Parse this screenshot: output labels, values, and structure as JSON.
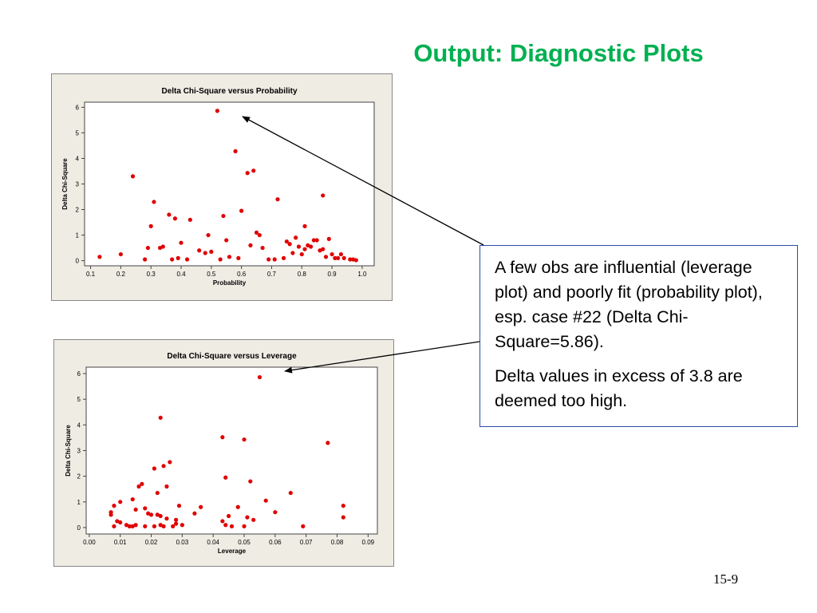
{
  "slide": {
    "title": "Output: Diagnostic Plots",
    "slide_number": "15-9"
  },
  "callout": {
    "paragraph1": "A few obs are influential (leverage plot) and poorly fit (probability plot), esp. case #22 (Delta Chi-Square=5.86).",
    "paragraph2": "Delta values in excess of 3.8 are deemed too high."
  },
  "colors": {
    "title": "#00b050",
    "marker": "#e00000",
    "frame_background": "#efece4",
    "callout_border": "#2a4da8"
  },
  "chart_data": [
    {
      "type": "scatter",
      "title": "Delta Chi-Square versus Probability",
      "xlabel": "Probability",
      "ylabel": "Delta Chi-Square",
      "xlim": [
        0.08,
        1.04
      ],
      "ylim": [
        -0.2,
        6.2
      ],
      "xticks": [
        0.1,
        0.2,
        0.3,
        0.4,
        0.5,
        0.6,
        0.7,
        0.8,
        0.9,
        1.0
      ],
      "xtick_labels": [
        "0.1",
        "0.2",
        "0.3",
        "0.4",
        "0.5",
        "0.6",
        "0.7",
        "0.8",
        "0.9",
        "1.0"
      ],
      "yticks": [
        0,
        1,
        2,
        3,
        4,
        5,
        6
      ],
      "ytick_labels": [
        "0",
        "1",
        "2",
        "3",
        "4",
        "5",
        "6"
      ],
      "grid": false,
      "legend": false,
      "marker_color": "#e00000",
      "points": [
        [
          0.13,
          0.15
        ],
        [
          0.2,
          0.25
        ],
        [
          0.24,
          3.3
        ],
        [
          0.28,
          0.05
        ],
        [
          0.29,
          0.5
        ],
        [
          0.3,
          1.35
        ],
        [
          0.31,
          2.3
        ],
        [
          0.33,
          0.5
        ],
        [
          0.34,
          0.55
        ],
        [
          0.36,
          1.8
        ],
        [
          0.37,
          0.05
        ],
        [
          0.38,
          1.65
        ],
        [
          0.39,
          0.1
        ],
        [
          0.4,
          0.7
        ],
        [
          0.42,
          0.05
        ],
        [
          0.43,
          1.6
        ],
        [
          0.46,
          0.4
        ],
        [
          0.48,
          0.3
        ],
        [
          0.49,
          1.0
        ],
        [
          0.5,
          0.35
        ],
        [
          0.52,
          5.86
        ],
        [
          0.53,
          0.05
        ],
        [
          0.54,
          1.75
        ],
        [
          0.55,
          0.8
        ],
        [
          0.56,
          0.15
        ],
        [
          0.58,
          4.28
        ],
        [
          0.59,
          0.1
        ],
        [
          0.6,
          1.95
        ],
        [
          0.62,
          3.43
        ],
        [
          0.63,
          0.6
        ],
        [
          0.64,
          3.52
        ],
        [
          0.65,
          1.1
        ],
        [
          0.66,
          1.0
        ],
        [
          0.67,
          0.5
        ],
        [
          0.69,
          0.05
        ],
        [
          0.71,
          0.05
        ],
        [
          0.72,
          2.4
        ],
        [
          0.74,
          0.1
        ],
        [
          0.75,
          0.75
        ],
        [
          0.76,
          0.65
        ],
        [
          0.77,
          0.3
        ],
        [
          0.78,
          0.9
        ],
        [
          0.79,
          0.55
        ],
        [
          0.8,
          0.25
        ],
        [
          0.81,
          1.35
        ],
        [
          0.81,
          0.45
        ],
        [
          0.82,
          0.6
        ],
        [
          0.83,
          0.55
        ],
        [
          0.84,
          0.8
        ],
        [
          0.85,
          0.8
        ],
        [
          0.86,
          0.4
        ],
        [
          0.87,
          0.45
        ],
        [
          0.87,
          2.55
        ],
        [
          0.88,
          0.15
        ],
        [
          0.89,
          0.85
        ],
        [
          0.9,
          0.25
        ],
        [
          0.91,
          0.1
        ],
        [
          0.92,
          0.1
        ],
        [
          0.93,
          0.25
        ],
        [
          0.94,
          0.1
        ],
        [
          0.96,
          0.05
        ],
        [
          0.97,
          0.05
        ],
        [
          0.98,
          0.02
        ]
      ]
    },
    {
      "type": "scatter",
      "title": "Delta Chi-Square versus Leverage",
      "xlabel": "Leverage",
      "ylabel": "Delta Chi-Square",
      "xlim": [
        -0.001,
        0.093
      ],
      "ylim": [
        -0.25,
        6.25
      ],
      "xticks": [
        0.0,
        0.01,
        0.02,
        0.03,
        0.04,
        0.05,
        0.06,
        0.07,
        0.08,
        0.09
      ],
      "xtick_labels": [
        "0.00",
        "0.01",
        "0.02",
        "0.03",
        "0.04",
        "0.05",
        "0.06",
        "0.07",
        "0.08",
        "0.09"
      ],
      "yticks": [
        0,
        1,
        2,
        3,
        4,
        5,
        6
      ],
      "ytick_labels": [
        "0",
        "1",
        "2",
        "3",
        "4",
        "5",
        "6"
      ],
      "grid": false,
      "legend": false,
      "marker_color": "#e00000",
      "points": [
        [
          0.007,
          0.6
        ],
        [
          0.007,
          0.5
        ],
        [
          0.008,
          0.85
        ],
        [
          0.008,
          0.05
        ],
        [
          0.009,
          0.25
        ],
        [
          0.01,
          1.0
        ],
        [
          0.01,
          0.2
        ],
        [
          0.012,
          0.1
        ],
        [
          0.013,
          0.05
        ],
        [
          0.014,
          0.05
        ],
        [
          0.014,
          1.1
        ],
        [
          0.015,
          0.7
        ],
        [
          0.015,
          0.1
        ],
        [
          0.016,
          1.6
        ],
        [
          0.017,
          1.7
        ],
        [
          0.018,
          0.05
        ],
        [
          0.018,
          0.75
        ],
        [
          0.019,
          0.55
        ],
        [
          0.02,
          0.5
        ],
        [
          0.021,
          0.05
        ],
        [
          0.021,
          2.3
        ],
        [
          0.022,
          1.35
        ],
        [
          0.022,
          0.5
        ],
        [
          0.023,
          4.28
        ],
        [
          0.023,
          0.45
        ],
        [
          0.023,
          0.1
        ],
        [
          0.024,
          2.4
        ],
        [
          0.024,
          0.05
        ],
        [
          0.025,
          0.35
        ],
        [
          0.025,
          1.6
        ],
        [
          0.026,
          2.55
        ],
        [
          0.027,
          0.05
        ],
        [
          0.028,
          0.15
        ],
        [
          0.028,
          0.3
        ],
        [
          0.029,
          0.85
        ],
        [
          0.03,
          0.1
        ],
        [
          0.034,
          0.55
        ],
        [
          0.036,
          0.8
        ],
        [
          0.043,
          3.52
        ],
        [
          0.043,
          0.25
        ],
        [
          0.044,
          1.95
        ],
        [
          0.044,
          0.1
        ],
        [
          0.045,
          0.45
        ],
        [
          0.046,
          0.05
        ],
        [
          0.048,
          0.8
        ],
        [
          0.05,
          3.43
        ],
        [
          0.05,
          0.05
        ],
        [
          0.051,
          0.4
        ],
        [
          0.052,
          1.8
        ],
        [
          0.053,
          0.3
        ],
        [
          0.055,
          5.86
        ],
        [
          0.057,
          1.05
        ],
        [
          0.06,
          0.6
        ],
        [
          0.065,
          1.35
        ],
        [
          0.069,
          0.05
        ],
        [
          0.077,
          3.3
        ],
        [
          0.082,
          0.85
        ],
        [
          0.082,
          0.4
        ]
      ]
    }
  ]
}
